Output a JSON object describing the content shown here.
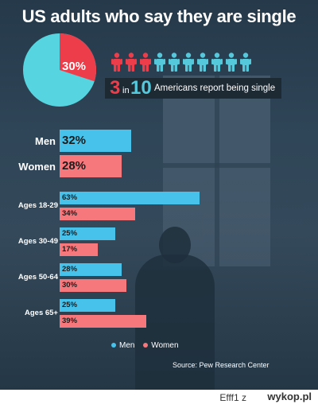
{
  "title": "US adults who say they are single",
  "colors": {
    "men": "#47c2ea",
    "women": "#f6787d",
    "pie_main": "#56d4df",
    "pie_slice": "#ee3d4a",
    "people_red": "#ee3d4a",
    "people_teal": "#56c8dc"
  },
  "pie": {
    "value": 30,
    "label": "30%"
  },
  "people": {
    "icons": [
      "person-red-icon",
      "person-red-icon",
      "person-red-icon",
      "person-teal-icon",
      "person-teal-icon",
      "person-teal-icon",
      "person-teal-icon",
      "person-teal-icon",
      "person-teal-icon",
      "person-teal-icon"
    ],
    "highlighted": 3,
    "total": 10
  },
  "ratio": {
    "number1": "3",
    "in": "in",
    "number2": "10",
    "text": "Americans report being single"
  },
  "chart_data": {
    "type": "bar",
    "title": "US adults who say they are single",
    "overall": [
      {
        "label": "Men",
        "value": 32,
        "display": "32%",
        "series": "men"
      },
      {
        "label": "Women",
        "value": 28,
        "display": "28%",
        "series": "women"
      }
    ],
    "categories": [
      "Ages 18-29",
      "Ages 30-49",
      "Ages 50-64",
      "Ages 65+"
    ],
    "series": [
      {
        "name": "Men",
        "values": [
          63,
          25,
          28,
          25
        ],
        "labels": [
          "63%",
          "25%",
          "28%",
          "25%"
        ]
      },
      {
        "name": "Women",
        "values": [
          34,
          17,
          30,
          39
        ],
        "labels": [
          "34%",
          "17%",
          "30%",
          "39%"
        ]
      }
    ],
    "legend": [
      "Men",
      "Women"
    ],
    "source": "Source: Pew Research Center"
  },
  "footer": {
    "user": "Efff1",
    "z": "z",
    "logo": "wykop.pl"
  }
}
